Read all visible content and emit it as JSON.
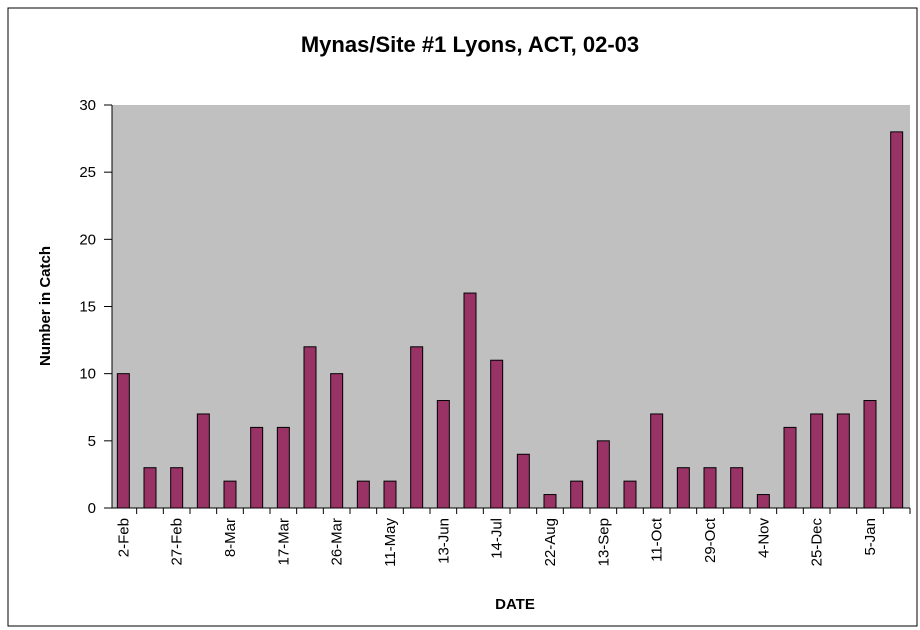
{
  "chart_data": {
    "type": "bar",
    "title": "Mynas/Site #1 Lyons, ACT, 02-03",
    "x_label": "DATE",
    "y_label": "Number in Catch",
    "categories": [
      "2-Feb",
      null,
      "27-Feb",
      null,
      "8-Mar",
      null,
      "17-Mar",
      null,
      "26-Mar",
      null,
      "11-May",
      null,
      "13-Jun",
      null,
      "14-Jul",
      null,
      "22-Aug",
      null,
      "13-Sep",
      null,
      "11-Oct",
      null,
      "29-Oct",
      null,
      "4-Nov",
      null,
      "25-Dec",
      null,
      "5-Jan",
      null
    ],
    "values": [
      10,
      3,
      3,
      7,
      2,
      6,
      6,
      12,
      10,
      2,
      2,
      12,
      8,
      16,
      11,
      4,
      1,
      2,
      5,
      2,
      7,
      3,
      3,
      3,
      1,
      6,
      7,
      7,
      8,
      28
    ],
    "color": "#993366",
    "ylim": [
      0,
      30
    ],
    "yticks": [
      0,
      5,
      10,
      15,
      20,
      25,
      30
    ],
    "grid": false
  }
}
